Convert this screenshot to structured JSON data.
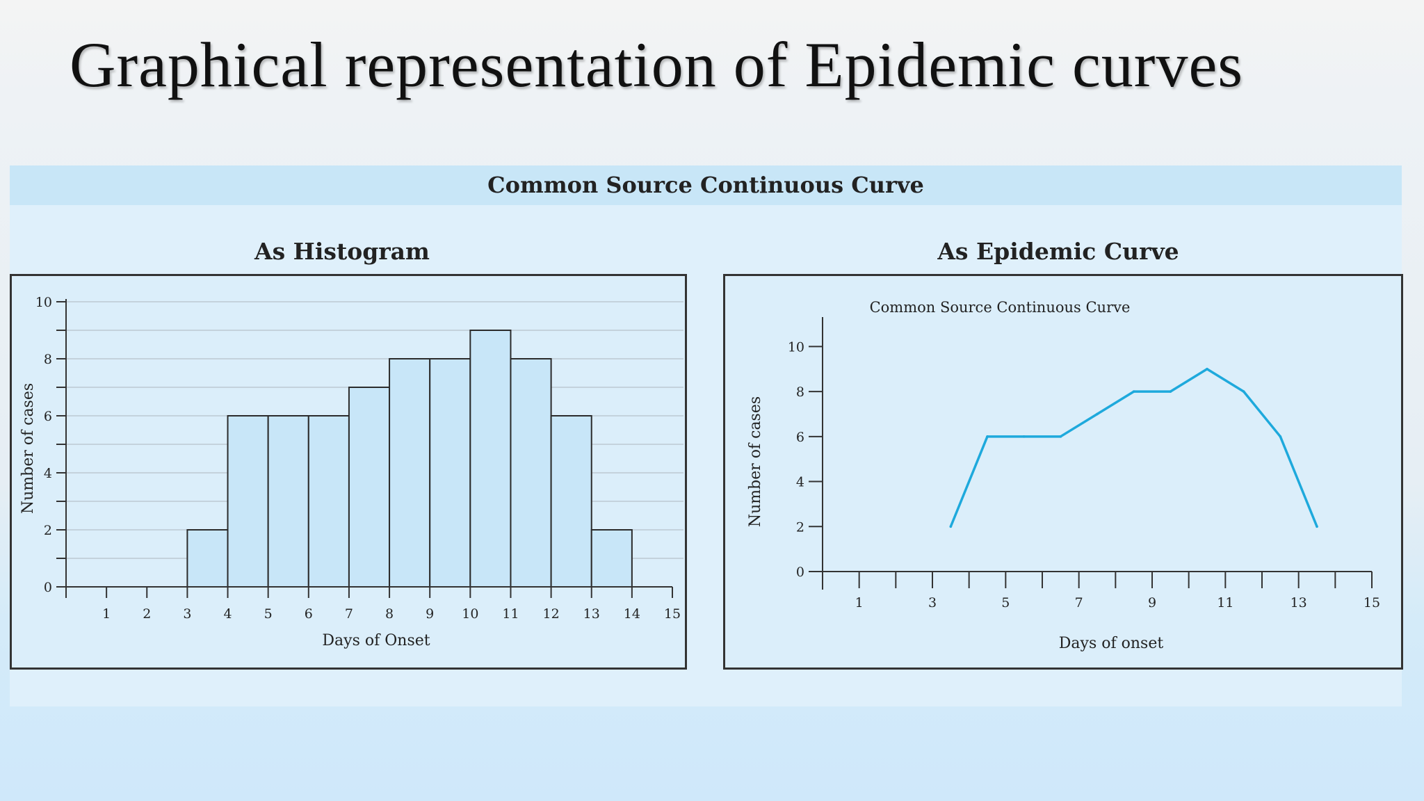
{
  "slide": {
    "title": "Graphical representation of Epidemic curves"
  },
  "banner": {
    "label": "Common Source Continuous Curve"
  },
  "histogram": {
    "heading": "As Histogram"
  },
  "epicurve": {
    "heading": "As Epidemic Curve"
  },
  "chart_data": [
    {
      "type": "bar",
      "title": "",
      "xlabel": "Days of Onset",
      "ylabel": "Number of cases",
      "xlim": [
        0,
        15
      ],
      "ylim": [
        0,
        10
      ],
      "xticks": [
        1,
        2,
        3,
        4,
        5,
        6,
        7,
        8,
        9,
        10,
        11,
        12,
        13,
        14,
        15
      ],
      "yticks": [
        0,
        2,
        4,
        6,
        8,
        10
      ],
      "grid": true,
      "bins": [
        {
          "start": 3,
          "end": 4,
          "value": 2
        },
        {
          "start": 4,
          "end": 5,
          "value": 6
        },
        {
          "start": 5,
          "end": 6,
          "value": 6
        },
        {
          "start": 6,
          "end": 7,
          "value": 6
        },
        {
          "start": 7,
          "end": 8,
          "value": 7
        },
        {
          "start": 8,
          "end": 9,
          "value": 8
        },
        {
          "start": 9,
          "end": 10,
          "value": 8
        },
        {
          "start": 10,
          "end": 11,
          "value": 9
        },
        {
          "start": 11,
          "end": 12,
          "value": 8
        },
        {
          "start": 12,
          "end": 13,
          "value": 6
        },
        {
          "start": 13,
          "end": 14,
          "value": 2
        }
      ],
      "bar_color": "#c8e6f8"
    },
    {
      "type": "line",
      "title": "Common Source Continuous Curve",
      "xlabel": "Days of onset",
      "ylabel": "Number of cases",
      "xlim": [
        0,
        15
      ],
      "ylim": [
        0,
        11
      ],
      "xticks": [
        1,
        3,
        5,
        7,
        9,
        11,
        13,
        15
      ],
      "yticks": [
        0,
        2,
        4,
        6,
        8,
        10
      ],
      "grid": false,
      "x": [
        3.5,
        4.5,
        5.5,
        6.5,
        7.5,
        8.5,
        9.5,
        10.5,
        11.5,
        12.5,
        13.5
      ],
      "y": [
        2,
        6,
        6,
        6,
        7,
        8,
        8,
        9,
        8,
        6,
        2
      ],
      "line_color": "#1ea9dc"
    }
  ]
}
